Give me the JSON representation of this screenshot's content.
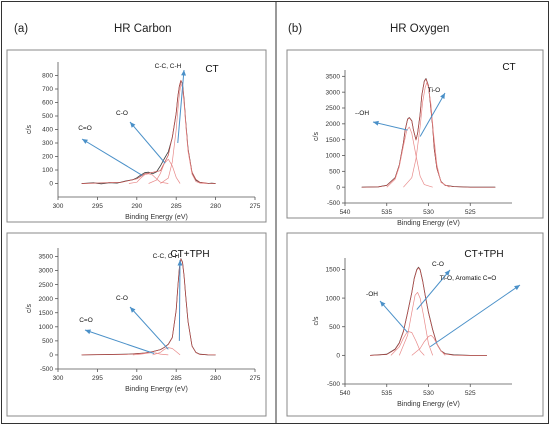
{
  "figure": {
    "panels": [
      {
        "letter": "(a)",
        "heading": "HR Carbon"
      },
      {
        "letter": "(b)",
        "heading": "HR Oxygen"
      }
    ]
  },
  "chart_data": [
    {
      "type": "line",
      "panel": "(a)",
      "sample_label": "CT",
      "xlabel": "Binding Energy (eV)",
      "ylabel": "c/s",
      "x_reversed": true,
      "xlim": [
        300,
        275
      ],
      "xticks": [
        300,
        295,
        290,
        285,
        280,
        275
      ],
      "ylim": [
        -100,
        900
      ],
      "yticks": [
        0,
        100,
        200,
        300,
        400,
        500,
        600,
        700,
        800
      ],
      "grid": false,
      "series": [
        {
          "role": "measured",
          "x": [
            297.0,
            295.5,
            294.5,
            293.5,
            292.5,
            291.5,
            290.5,
            290.0,
            289.5,
            289.0,
            288.5,
            288.0,
            287.5,
            287.0,
            286.5,
            286.0,
            285.5,
            285.0,
            284.8,
            284.6,
            284.4,
            284.2,
            284.0,
            283.8,
            283.5,
            283.0,
            282.5,
            282.0,
            281.5,
            281.0,
            280.5,
            280.0
          ],
          "y": [
            0,
            5,
            -3,
            6,
            3,
            18,
            28,
            42,
            62,
            80,
            84,
            72,
            86,
            130,
            185,
            235,
            340,
            520,
            640,
            720,
            760,
            740,
            620,
            460,
            260,
            80,
            25,
            8,
            3,
            0,
            2,
            0
          ]
        },
        {
          "role": "fit",
          "x": [
            297.0,
            292.0,
            290.0,
            289.0,
            288.0,
            287.0,
            286.0,
            285.5,
            285.0,
            284.8,
            284.6,
            284.4,
            284.2,
            284.0,
            283.8,
            283.5,
            283.0,
            282.5,
            282.0,
            281.0,
            280.0
          ],
          "y": [
            0,
            8,
            35,
            72,
            82,
            95,
            210,
            345,
            525,
            645,
            725,
            765,
            735,
            615,
            455,
            255,
            85,
            30,
            10,
            2,
            0
          ]
        },
        {
          "role": "component",
          "name": "C=O",
          "x": [
            291.0,
            290.0,
            289.5,
            289.0,
            288.5,
            288.0,
            287.5,
            287.0,
            286.0
          ],
          "y": [
            0,
            10,
            40,
            65,
            72,
            62,
            35,
            10,
            0
          ]
        },
        {
          "role": "component",
          "name": "C-O",
          "x": [
            288.5,
            287.5,
            287.0,
            286.5,
            286.0,
            285.5,
            285.0,
            284.5
          ],
          "y": [
            0,
            25,
            75,
            150,
            180,
            130,
            45,
            0
          ]
        },
        {
          "role": "component",
          "name": "C-C, C-H",
          "x": [
            287.0,
            286.0,
            285.5,
            285.0,
            284.8,
            284.6,
            284.4,
            284.2,
            284.0,
            283.8,
            283.5,
            283.0,
            282.5,
            282.0,
            281.0
          ],
          "y": [
            0,
            40,
            160,
            400,
            540,
            660,
            740,
            710,
            590,
            440,
            240,
            70,
            15,
            3,
            0
          ]
        }
      ],
      "annotations": [
        {
          "text": "C=O",
          "points_to": [
            289.3,
            60
          ]
        },
        {
          "text": "C-O",
          "points_to": [
            286.4,
            150
          ]
        },
        {
          "text": "C-C, C-H",
          "points_to": [
            284.8,
            300
          ]
        }
      ]
    },
    {
      "type": "line",
      "panel": "(a)",
      "sample_label": "CT+TPH",
      "xlabel": "Binding Energy (eV)",
      "ylabel": "c/s",
      "x_reversed": true,
      "xlim": [
        300,
        275
      ],
      "xticks": [
        300,
        295,
        290,
        285,
        280,
        275
      ],
      "ylim": [
        -500,
        3800
      ],
      "yticks": [
        -500,
        0,
        500,
        1000,
        1500,
        2000,
        2500,
        3000,
        3500
      ],
      "grid": false,
      "series": [
        {
          "role": "measured",
          "x": [
            297.0,
            294.0,
            291.0,
            289.0,
            288.0,
            287.0,
            286.5,
            286.0,
            285.5,
            285.0,
            284.8,
            284.6,
            284.4,
            284.2,
            284.0,
            283.8,
            283.5,
            283.0,
            282.5,
            282.0,
            281.0,
            280.0
          ],
          "y": [
            0,
            15,
            30,
            70,
            120,
            190,
            270,
            380,
            620,
            1600,
            2400,
            3100,
            3420,
            3300,
            2800,
            2100,
            1200,
            320,
            90,
            25,
            5,
            0
          ]
        },
        {
          "role": "fit",
          "x": [
            297.0,
            294.0,
            291.0,
            289.0,
            288.0,
            287.0,
            286.5,
            286.0,
            285.5,
            285.0,
            284.8,
            284.6,
            284.4,
            284.2,
            284.0,
            283.8,
            283.5,
            283.0,
            282.5,
            282.0,
            281.0,
            280.0
          ],
          "y": [
            0,
            10,
            25,
            65,
            115,
            185,
            265,
            375,
            615,
            1590,
            2390,
            3090,
            3410,
            3290,
            2790,
            2090,
            1190,
            315,
            85,
            20,
            4,
            0
          ]
        },
        {
          "role": "component",
          "name": "C=O",
          "x": [
            290.5,
            289.5,
            288.5,
            288.0,
            287.5,
            287.0,
            286.0
          ],
          "y": [
            0,
            30,
            70,
            80,
            65,
            30,
            0
          ]
        },
        {
          "role": "component",
          "name": "C-O",
          "x": [
            288.0,
            287.0,
            286.5,
            286.0,
            285.5,
            285.0,
            284.5
          ],
          "y": [
            0,
            90,
            200,
            260,
            230,
            120,
            0
          ]
        }
      ],
      "annotations": [
        {
          "text": "C=O",
          "points_to": [
            287.8,
            50
          ]
        },
        {
          "text": "C-O",
          "points_to": [
            286.0,
            200
          ]
        },
        {
          "text": "C-C, C-H",
          "points_to": [
            284.6,
            500
          ]
        }
      ]
    },
    {
      "type": "line",
      "panel": "(b)",
      "sample_label": "CT",
      "xlabel": "Binding Energy (eV)",
      "ylabel": "c/s",
      "x_reversed": true,
      "xlim": [
        540,
        520
      ],
      "xticks": [
        540,
        535,
        530,
        525
      ],
      "ylim": [
        -500,
        3700
      ],
      "yticks": [
        -500,
        0,
        500,
        1000,
        1500,
        2000,
        2500,
        3000,
        3500
      ],
      "grid": false,
      "series": [
        {
          "role": "measured",
          "x": [
            538.0,
            536.0,
            535.0,
            534.0,
            533.5,
            533.0,
            532.8,
            532.5,
            532.3,
            532.0,
            531.8,
            531.5,
            531.3,
            531.0,
            530.8,
            530.5,
            530.3,
            530.0,
            529.8,
            529.5,
            529.3,
            529.0,
            528.5,
            528.0,
            527.0,
            525.0,
            522.0
          ],
          "y": [
            0,
            10,
            60,
            300,
            700,
            1400,
            1800,
            2150,
            2200,
            2100,
            1800,
            1500,
            1700,
            2300,
            2900,
            3350,
            3430,
            3200,
            2700,
            1900,
            1200,
            600,
            180,
            60,
            20,
            0,
            0
          ]
        },
        {
          "role": "fit",
          "x": [
            538.0,
            536.0,
            535.0,
            534.0,
            533.5,
            533.0,
            532.8,
            532.5,
            532.3,
            532.0,
            531.8,
            531.5,
            531.3,
            531.0,
            530.8,
            530.5,
            530.3,
            530.0,
            529.8,
            529.5,
            529.3,
            529.0,
            528.5,
            528.0,
            527.0,
            525.0,
            522.0
          ],
          "y": [
            0,
            8,
            55,
            290,
            690,
            1390,
            1790,
            2140,
            2190,
            2090,
            1790,
            1490,
            1690,
            2290,
            2890,
            3340,
            3420,
            3190,
            2690,
            1890,
            1190,
            590,
            175,
            55,
            15,
            0,
            0
          ]
        },
        {
          "role": "component",
          "name": "-OH",
          "x": [
            535.0,
            534.0,
            533.5,
            533.0,
            532.6,
            532.3,
            532.0,
            531.5,
            531.0,
            530.5,
            529.5
          ],
          "y": [
            0,
            250,
            650,
            1300,
            1800,
            1900,
            1700,
            1000,
            350,
            80,
            0
          ]
        },
        {
          "role": "component",
          "name": "Ti-O",
          "x": [
            533.0,
            532.0,
            531.5,
            531.0,
            530.7,
            530.4,
            530.2,
            530.0,
            529.7,
            529.4,
            529.0,
            528.5,
            527.5
          ],
          "y": [
            0,
            300,
            900,
            1900,
            2700,
            3150,
            3300,
            3150,
            2600,
            1700,
            700,
            150,
            0
          ]
        }
      ],
      "annotations": [
        {
          "text": "--OH",
          "points_to": [
            532.5,
            1800
          ]
        },
        {
          "text": "Ti-O",
          "points_to": [
            531.0,
            1600
          ]
        }
      ]
    },
    {
      "type": "line",
      "panel": "(b)",
      "sample_label": "CT+TPH",
      "xlabel": "Binding Energy (eV)",
      "ylabel": "c/s",
      "x_reversed": true,
      "xlim": [
        540,
        520
      ],
      "xticks": [
        540,
        535,
        530,
        525
      ],
      "ylim": [
        -500,
        1700
      ],
      "yticks": [
        -500,
        0,
        500,
        1000,
        1500
      ],
      "grid": false,
      "series": [
        {
          "role": "measured",
          "x": [
            537.0,
            535.0,
            534.0,
            533.5,
            533.0,
            532.5,
            532.0,
            531.7,
            531.4,
            531.2,
            531.0,
            530.7,
            530.4,
            530.0,
            529.5,
            529.0,
            528.5,
            528.0,
            527.0,
            525.0,
            523.0
          ],
          "y": [
            0,
            20,
            110,
            220,
            420,
            750,
            1100,
            1350,
            1500,
            1540,
            1500,
            1300,
            1050,
            750,
            450,
            200,
            80,
            30,
            10,
            0,
            0
          ]
        },
        {
          "role": "fit",
          "x": [
            537.0,
            535.0,
            534.0,
            533.5,
            533.0,
            532.5,
            532.0,
            531.7,
            531.4,
            531.2,
            531.0,
            530.7,
            530.4,
            530.0,
            529.5,
            529.0,
            528.5,
            528.0,
            527.0,
            525.0,
            523.0
          ],
          "y": [
            0,
            15,
            100,
            210,
            410,
            740,
            1090,
            1340,
            1490,
            1530,
            1490,
            1290,
            1040,
            740,
            440,
            195,
            75,
            25,
            5,
            0,
            0
          ]
        },
        {
          "role": "component",
          "name": "-OH",
          "x": [
            534.5,
            533.5,
            533.0,
            532.5,
            532.0,
            531.5,
            531.0,
            530.5
          ],
          "y": [
            0,
            150,
            300,
            420,
            400,
            250,
            80,
            0
          ]
        },
        {
          "role": "component",
          "name": "C-O",
          "x": [
            533.5,
            532.5,
            532.0,
            531.6,
            531.3,
            531.0,
            530.6,
            530.0,
            529.5
          ],
          "y": [
            0,
            350,
            750,
            1050,
            1100,
            1000,
            700,
            200,
            0
          ]
        },
        {
          "role": "component",
          "name": "Ti-O, Aromatic C=O",
          "x": [
            532.0,
            531.0,
            530.5,
            530.0,
            529.7,
            529.4,
            529.0,
            528.5,
            528.0
          ],
          "y": [
            0,
            120,
            240,
            330,
            350,
            310,
            200,
            80,
            0
          ]
        }
      ],
      "annotations": [
        {
          "text": "-OH",
          "points_to": [
            532.5,
            400
          ]
        },
        {
          "text": "C-O",
          "points_to": [
            531.4,
            800
          ]
        },
        {
          "text": "Ti-O, Aromatic C=O",
          "points_to": [
            529.8,
            150
          ]
        }
      ]
    }
  ]
}
